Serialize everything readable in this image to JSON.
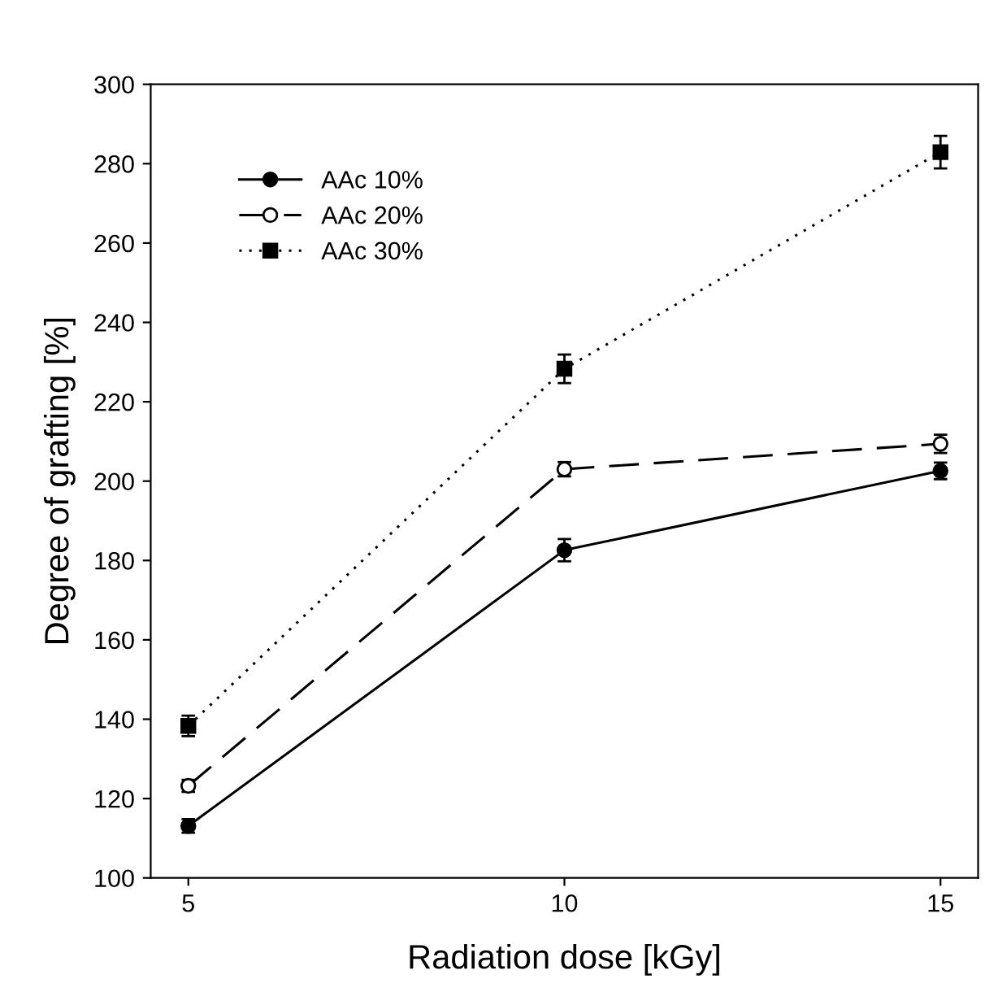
{
  "chart_data": {
    "type": "line",
    "xlabel": "Radiation dose [kGy]",
    "ylabel": "Degree of grafting [%]",
    "x": [
      5,
      10,
      15
    ],
    "xlim": [
      4.5,
      15.5
    ],
    "xticks": [
      5,
      10,
      15
    ],
    "ylim": [
      100,
      300
    ],
    "yticks": [
      100,
      120,
      140,
      160,
      180,
      200,
      220,
      240,
      260,
      280,
      300
    ],
    "grid": false,
    "legend": "top left",
    "series": [
      {
        "name": "AAc 10%",
        "color": "#000000",
        "values": [
          113.1,
          182.6,
          202.6
        ],
        "errors": [
          1.7,
          2.8,
          2.1
        ],
        "marker": "circle",
        "line_style": "solid"
      },
      {
        "name": "AAc 20%",
        "color": "#000000",
        "values": [
          123.2,
          203,
          209.4
        ],
        "errors": [
          1.5,
          1.8,
          2.3
        ],
        "marker": "open circle",
        "line_style": "dashed"
      },
      {
        "name": "AAc 30%",
        "color": "#000000",
        "values": [
          138.3,
          228.3,
          282.9
        ],
        "errors": [
          2.6,
          3.6,
          4.1
        ],
        "marker": "square",
        "line_style": "dotted"
      }
    ]
  }
}
